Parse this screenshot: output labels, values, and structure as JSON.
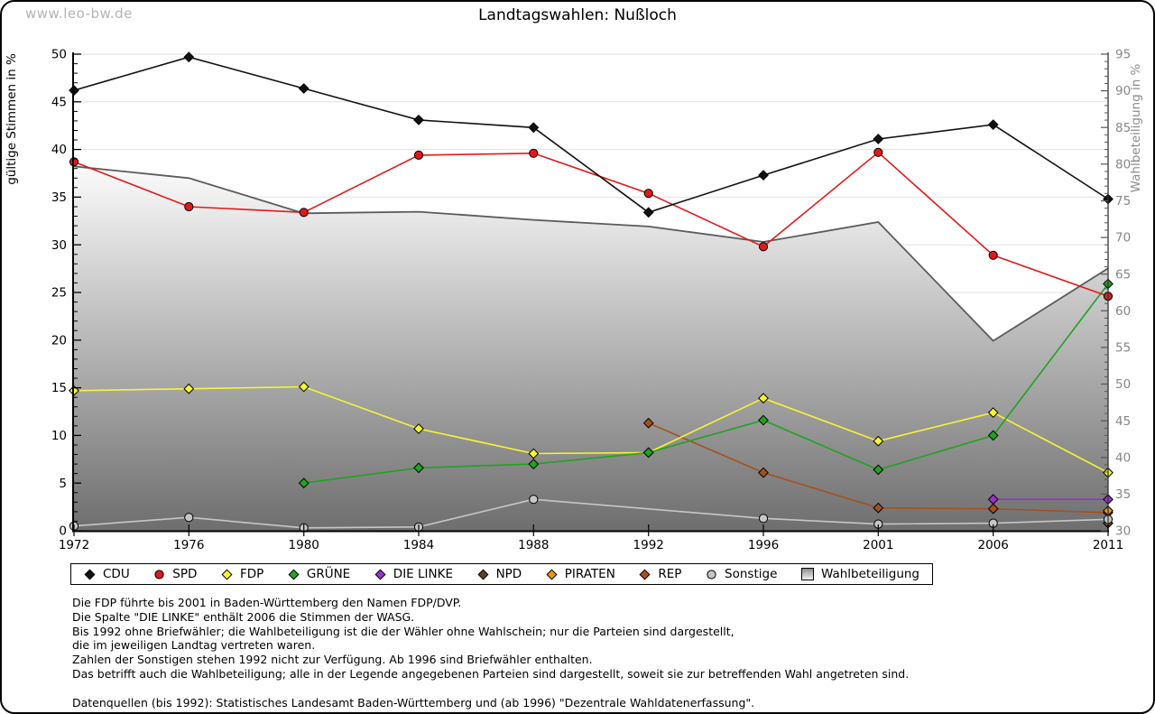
{
  "page": {
    "watermark": "www.leo-bw.de",
    "title": "Landtagswahlen: Nußloch"
  },
  "chart_data": {
    "type": "line",
    "title": "Landtagswahlen: Nußloch",
    "x_categories": [
      "1972",
      "1976",
      "1980",
      "1984",
      "1988",
      "1992",
      "1996",
      "2001",
      "2006",
      "2011"
    ],
    "left_axis": {
      "label": "gültige Stimmen in %",
      "min": 0,
      "max": 50,
      "tick_step": 5,
      "minor_step": 1
    },
    "right_axis": {
      "label": "Wahlbeteiligung in %",
      "min": 30,
      "max": 95,
      "tick_step": 5,
      "minor_step": 1
    },
    "grid": true,
    "legend_position": "bottom",
    "series": [
      {
        "name": "CDU",
        "axis": "left",
        "type": "line",
        "marker": "diamond",
        "color": "#111111",
        "values": [
          46.2,
          49.7,
          46.4,
          43.1,
          42.3,
          33.4,
          37.3,
          41.1,
          42.6,
          34.8
        ]
      },
      {
        "name": "SPD",
        "axis": "left",
        "type": "line",
        "marker": "circle",
        "color": "#e01a1a",
        "values": [
          38.7,
          34.0,
          33.4,
          39.4,
          39.6,
          35.4,
          29.8,
          39.7,
          28.9,
          24.6
        ]
      },
      {
        "name": "FDP",
        "axis": "left",
        "type": "line",
        "marker": "diamond",
        "color": "#f6f633",
        "values": [
          14.7,
          14.9,
          15.1,
          10.7,
          8.1,
          8.2,
          13.9,
          9.4,
          12.4,
          6.1
        ]
      },
      {
        "name": "GRÜNE",
        "axis": "left",
        "type": "line",
        "marker": "diamond",
        "color": "#1fa320",
        "values": [
          null,
          null,
          5.0,
          6.6,
          7.0,
          8.2,
          11.6,
          6.4,
          10.0,
          25.9
        ]
      },
      {
        "name": "DIE LINKE",
        "axis": "left",
        "type": "line",
        "marker": "diamond",
        "color": "#9a30d0",
        "values": [
          null,
          null,
          null,
          null,
          null,
          null,
          null,
          null,
          3.3,
          3.3
        ]
      },
      {
        "name": "NPD",
        "axis": "left",
        "type": "line",
        "marker": "diamond",
        "color": "#5e4126",
        "values": [
          null,
          null,
          null,
          null,
          null,
          null,
          null,
          null,
          null,
          0.8
        ]
      },
      {
        "name": "PIRATEN",
        "axis": "left",
        "type": "line",
        "marker": "diamond",
        "color": "#f09318",
        "values": [
          null,
          null,
          null,
          null,
          null,
          null,
          null,
          null,
          null,
          2.1
        ]
      },
      {
        "name": "REP",
        "axis": "left",
        "type": "line",
        "marker": "diamond",
        "color": "#a4511e",
        "values": [
          null,
          null,
          null,
          null,
          null,
          11.3,
          6.1,
          2.4,
          2.3,
          1.9
        ]
      },
      {
        "name": "Sonstige",
        "axis": "left",
        "type": "line",
        "marker": "circle",
        "color": "#c6c6c6",
        "values": [
          0.5,
          1.4,
          0.3,
          0.4,
          3.3,
          null,
          1.3,
          0.7,
          0.8,
          1.2
        ]
      },
      {
        "name": "Wahlbeteiligung",
        "axis": "right",
        "type": "area",
        "marker": "square",
        "color": "#5b5b5b",
        "gradient_top": "#fbfbfb",
        "gradient_bottom": "#6e6e6e",
        "values": [
          79.7,
          78.1,
          73.3,
          73.5,
          72.4,
          71.5,
          69.4,
          72.1,
          55.9,
          65.8
        ]
      }
    ]
  },
  "footnotes": {
    "lines": [
      "Die FDP führte bis 2001 in Baden-Württemberg den Namen FDP/DVP.",
      "Die Spalte \"DIE LINKE\" enthält 2006 die Stimmen der WASG.",
      "Bis 1992 ohne Briefwähler; die Wahlbeteiligung ist die der Wähler ohne Wahlschein; nur die Parteien sind dargestellt,",
      "die im jeweiligen Landtag vertreten waren.",
      "Zahlen der Sonstigen stehen 1992 nicht zur Verfügung. Ab 1996 sind Briefwähler enthalten.",
      "Das betrifft auch die Wahlbeteiligung; alle in der Legende angegebenen Parteien sind dargestellt, soweit sie zur betreffenden Wahl angetreten sind."
    ],
    "source_line": "Datenquellen (bis 1992): Statistisches Landesamt Baden-Württemberg und (ab 1996) \"Dezentrale Wahldatenerfassung\"."
  }
}
